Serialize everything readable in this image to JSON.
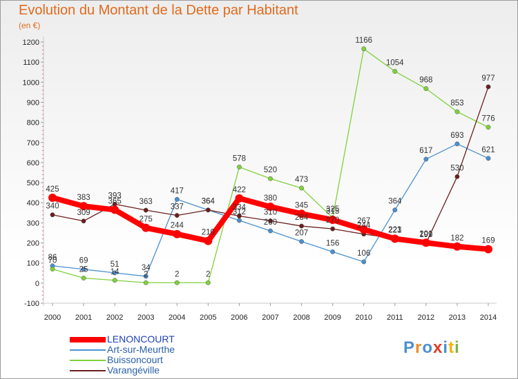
{
  "title": "Evolution du Montant de la Dette par Habitant",
  "subtitle": "(en €)",
  "logo": {
    "text": "Proxiti",
    "colors": [
      "#4a8fcf",
      "#f08a24",
      "#4a8fcf",
      "#e23a2a",
      "#4a8fcf",
      "#f0b400",
      "#7ab648"
    ]
  },
  "chart_data": {
    "type": "line",
    "title": "Evolution du Montant de la Dette par Habitant",
    "ylabel": "(en €)",
    "xlabel": "",
    "x": [
      "2000",
      "2001",
      "2002",
      "2003",
      "2004",
      "2005",
      "2006",
      "2007",
      "2008",
      "2009",
      "2010",
      "2011",
      "2012",
      "2013",
      "2014"
    ],
    "ylim": [
      -100,
      1200
    ],
    "yticks": [
      "-100",
      "0",
      "100",
      "200",
      "300",
      "400",
      "500",
      "600",
      "700",
      "800",
      "900",
      "1000",
      "1100",
      "1200"
    ],
    "grid": false,
    "legend_position": "bottom-left",
    "series": [
      {
        "name": "LENONCOURT",
        "color": "#ff0000",
        "values": [
          425,
          383,
          365,
          275,
          244,
          210,
          422,
          380,
          345,
          315,
          267,
          221,
          201,
          182,
          169
        ],
        "labels": [
          "425",
          "383",
          "365",
          "275",
          "244",
          "210",
          "422",
          "380",
          "345",
          "315",
          "267",
          "221",
          "201",
          "182",
          "169"
        ]
      },
      {
        "name": "Art-sur-Meurthe",
        "color": "#4a90d0",
        "values": [
          86,
          69,
          51,
          34,
          417,
          364,
          312,
          260,
          207,
          156,
          106,
          364,
          617,
          693,
          621
        ],
        "labels": [
          "86",
          "69",
          "51",
          "34",
          "417",
          "364",
          "312",
          "260",
          "207",
          "156",
          "106",
          "364",
          "617",
          "693",
          "621"
        ]
      },
      {
        "name": "Buissoncourt",
        "color": "#7fd13b",
        "values": [
          70,
          25,
          14,
          2,
          2,
          2,
          578,
          520,
          473,
          325,
          1166,
          1054,
          968,
          853,
          776
        ],
        "labels": [
          "70",
          "25",
          "14",
          "2",
          "2",
          "2",
          "578",
          "520",
          "473",
          "325",
          "1166",
          "1054",
          "968",
          "853",
          "776"
        ]
      },
      {
        "name": "Varangéville",
        "color": "#6b1e1e",
        "values": [
          340,
          309,
          393,
          363,
          337,
          364,
          334,
          310,
          284,
          270,
          244,
          223,
          199,
          530,
          977
        ],
        "labels": [
          "340",
          "309",
          "393",
          "363",
          "337",
          "364",
          "334",
          "310",
          "284",
          "270",
          "244",
          "223",
          "199",
          "530",
          "977"
        ]
      }
    ]
  }
}
